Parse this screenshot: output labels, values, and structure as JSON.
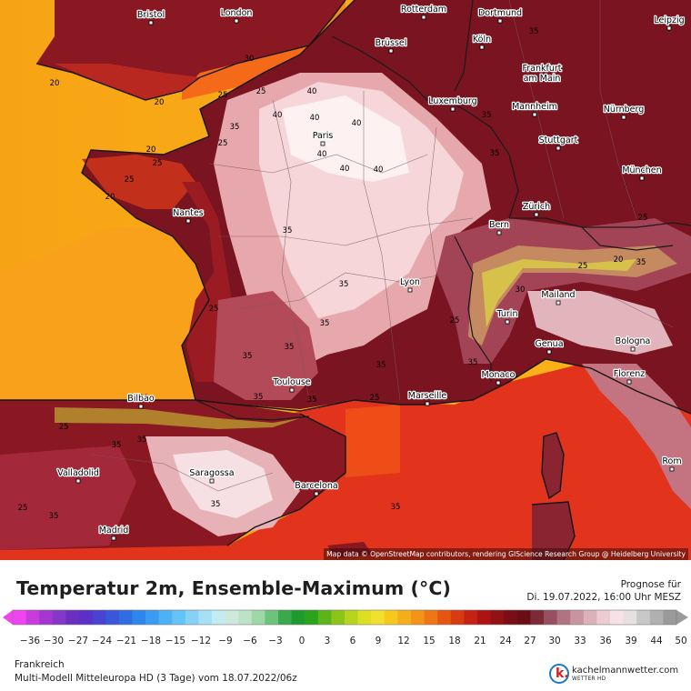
{
  "map": {
    "cities": [
      {
        "name": "Bristol"
      },
      {
        "name": "London"
      },
      {
        "name": "Rotterdam"
      },
      {
        "name": "Dortmund"
      },
      {
        "name": "Leipzig"
      },
      {
        "name": "Brüssel"
      },
      {
        "name": "Köln"
      },
      {
        "name": "Frankfurt"
      },
      {
        "name": "am Main"
      },
      {
        "name": "Luxemburg"
      },
      {
        "name": "Mannheim"
      },
      {
        "name": "Nürnberg"
      },
      {
        "name": "Paris"
      },
      {
        "name": "Stuttgart"
      },
      {
        "name": "München"
      },
      {
        "name": "Nantes"
      },
      {
        "name": "Zürich"
      },
      {
        "name": "Bern"
      },
      {
        "name": "Lyon"
      },
      {
        "name": "Mailand"
      },
      {
        "name": "Turin"
      },
      {
        "name": "Genua"
      },
      {
        "name": "Bologna"
      },
      {
        "name": "Florenz"
      },
      {
        "name": "Monaco"
      },
      {
        "name": "Toulouse"
      },
      {
        "name": "Marseille"
      },
      {
        "name": "Bilbao"
      },
      {
        "name": "Valladolid"
      },
      {
        "name": "Saragossa"
      },
      {
        "name": "Barcelona"
      },
      {
        "name": "Rom"
      },
      {
        "name": "Madrid"
      }
    ],
    "isotherm_labels": [
      {
        "text": "20"
      },
      {
        "text": "20"
      },
      {
        "text": "20"
      },
      {
        "text": "20"
      },
      {
        "text": "25"
      },
      {
        "text": "25"
      },
      {
        "text": "25"
      },
      {
        "text": "25"
      },
      {
        "text": "25"
      },
      {
        "text": "25"
      },
      {
        "text": "30"
      },
      {
        "text": "35"
      },
      {
        "text": "35"
      },
      {
        "text": "35"
      },
      {
        "text": "35"
      },
      {
        "text": "35"
      },
      {
        "text": "35"
      },
      {
        "text": "35"
      },
      {
        "text": "35"
      },
      {
        "text": "35"
      },
      {
        "text": "40"
      },
      {
        "text": "40"
      },
      {
        "text": "40"
      },
      {
        "text": "40"
      },
      {
        "text": "40"
      },
      {
        "text": "40"
      },
      {
        "text": "40"
      },
      {
        "text": "20"
      },
      {
        "text": "25"
      },
      {
        "text": "35"
      },
      {
        "text": "35"
      },
      {
        "text": "35"
      },
      {
        "text": "25"
      },
      {
        "text": "35"
      },
      {
        "text": "35"
      },
      {
        "text": "35"
      },
      {
        "text": "25"
      },
      {
        "text": "35"
      },
      {
        "text": "30"
      },
      {
        "text": "25"
      },
      {
        "text": "20"
      },
      {
        "text": "25"
      },
      {
        "text": "35"
      },
      {
        "text": "35"
      },
      {
        "text": "25"
      },
      {
        "text": "35"
      }
    ],
    "attribution": "Map data © OpenStreetMap contributors, rendering GIScience Research Group @ Heidelberg University"
  },
  "legend": {
    "title": "Temperatur 2m, Ensemble-Maximum (°C)",
    "forecast_label": "Prognose für",
    "forecast_date": "Di. 19.07.2022, 16:00 Uhr MESZ",
    "tick_labels": [
      "−36",
      "−30",
      "−27",
      "−24",
      "−21",
      "−18",
      "−15",
      "−12",
      "−9",
      "−6",
      "−3",
      "0",
      "3",
      "6",
      "9",
      "12",
      "15",
      "18",
      "21",
      "24",
      "27",
      "30",
      "33",
      "36",
      "39",
      "44",
      "50"
    ],
    "region": "Frankreich",
    "model_run": "Multi-Modell Mitteleuropa HD (3 Tage) vom  18.07.2022/06z",
    "brand": "kachelmannwetter.com",
    "brand_sub": "WETTER HD"
  },
  "colors": {
    "sea_atlantic": "#f8ac14",
    "sea_mediterranean": "#e8341c",
    "land_hot": "#7a1420",
    "land_very_hot": "#f2c8cc",
    "land_extreme": "#fbeef0",
    "border": "#222222"
  }
}
